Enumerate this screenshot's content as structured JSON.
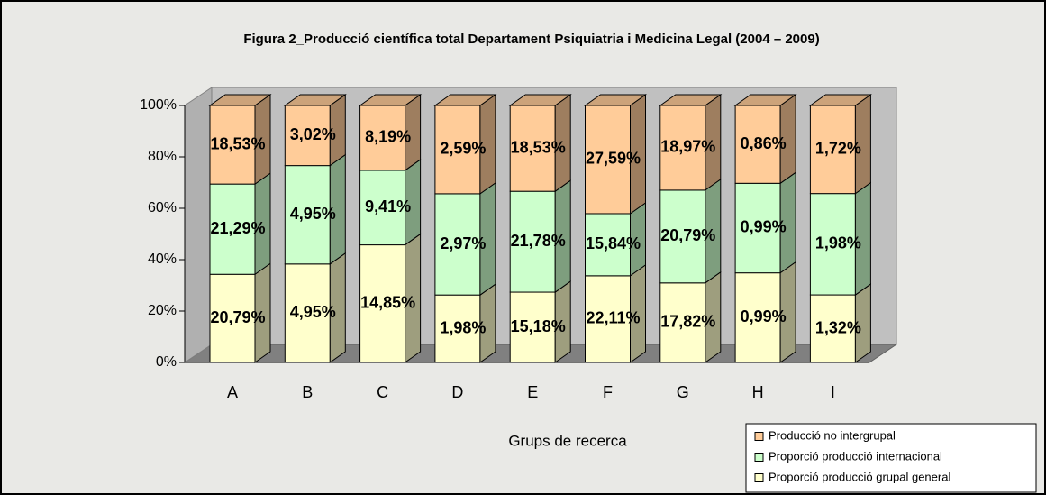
{
  "chart_data": {
    "type": "bar",
    "stacked": "percent",
    "title": "Figura 2_Producció científica total Departament Psiquiatria i Medicina Legal (2004 – 2009)",
    "x_label": "Grups de recerca",
    "categories": [
      "A",
      "B",
      "C",
      "D",
      "E",
      "F",
      "G",
      "H",
      "I"
    ],
    "series": [
      {
        "name": "Proporció producció grupal general",
        "color": "#ffffcc",
        "values": [
          20.79,
          4.95,
          14.85,
          1.98,
          15.18,
          22.11,
          17.82,
          0.99,
          1.32
        ],
        "value_labels": [
          "20,79%",
          "4,95%",
          "14,85%",
          "1,98%",
          "15,18%",
          "22,11%",
          "17,82%",
          "0,99%",
          "1,32%"
        ]
      },
      {
        "name": "Proporció producció internacional",
        "color": "#ccffcc",
        "values": [
          21.29,
          4.95,
          9.41,
          2.97,
          21.78,
          15.84,
          20.79,
          0.99,
          1.98
        ],
        "value_labels": [
          "21,29%",
          "4,95%",
          "9,41%",
          "2,97%",
          "21,78%",
          "15,84%",
          "20,79%",
          "0,99%",
          "1,98%"
        ]
      },
      {
        "name": "Producció no intergrupal",
        "color": "#ffcc99",
        "values": [
          18.53,
          3.02,
          8.19,
          2.59,
          18.53,
          27.59,
          18.97,
          0.86,
          1.72
        ],
        "value_labels": [
          "18,53%",
          "3,02%",
          "8,19%",
          "2,59%",
          "18,53%",
          "27,59%",
          "18,97%",
          "0,86%",
          "1,72%"
        ]
      }
    ],
    "ylim": [
      0,
      100
    ],
    "yticks": [
      {
        "value": 0,
        "label": "0%"
      },
      {
        "value": 20,
        "label": "20%"
      },
      {
        "value": 40,
        "label": "40%"
      },
      {
        "value": 60,
        "label": "60%"
      },
      {
        "value": 80,
        "label": "80%"
      },
      {
        "value": 100,
        "label": "100%"
      }
    ],
    "legend": "bottom-right"
  }
}
